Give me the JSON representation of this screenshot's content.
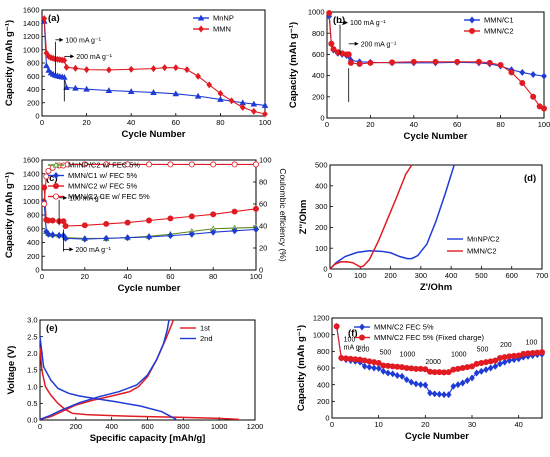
{
  "chart_data": [
    {
      "id": "a",
      "type": "line",
      "panel_label": "(a)",
      "xlabel": "Cycle Number",
      "ylabel": "Capacity (mAh g⁻¹)",
      "xlim": [
        0,
        100
      ],
      "ylim": [
        0,
        1600
      ],
      "xticks": [
        0,
        20,
        40,
        60,
        80,
        100
      ],
      "yticks": [
        0,
        200,
        400,
        600,
        800,
        1000,
        1200,
        1400,
        1600
      ],
      "legend": "top-right",
      "annotations": [
        "100 mA g⁻¹",
        "200 mA g⁻¹"
      ],
      "series": [
        {
          "name": "MnNP",
          "color": "#1f3bd6",
          "marker": "triangle",
          "x": [
            1,
            2,
            3,
            4,
            5,
            6,
            7,
            8,
            9,
            10,
            11,
            15,
            20,
            30,
            40,
            50,
            60,
            70,
            80,
            90,
            95,
            100
          ],
          "y": [
            1430,
            760,
            690,
            650,
            630,
            615,
            605,
            595,
            590,
            585,
            430,
            420,
            405,
            385,
            370,
            355,
            335,
            300,
            250,
            200,
            180,
            160
          ]
        },
        {
          "name": "MMN",
          "color": "#e11b22",
          "marker": "diamond",
          "x": [
            1,
            2,
            3,
            4,
            5,
            6,
            7,
            8,
            9,
            10,
            11,
            15,
            20,
            30,
            40,
            50,
            55,
            60,
            65,
            70,
            75,
            80,
            85,
            90,
            95,
            100
          ],
          "y": [
            1470,
            950,
            900,
            880,
            870,
            860,
            855,
            850,
            845,
            840,
            735,
            720,
            700,
            695,
            705,
            715,
            730,
            730,
            700,
            600,
            470,
            340,
            230,
            130,
            70,
            30
          ]
        }
      ]
    },
    {
      "id": "b",
      "type": "line",
      "panel_label": "(b)",
      "xlabel": "Cycle Number",
      "ylabel": "Capacity (mAh g⁻¹)",
      "xlim": [
        0,
        100
      ],
      "ylim": [
        0,
        1000
      ],
      "xticks": [
        0,
        20,
        40,
        60,
        80,
        100
      ],
      "yticks": [
        0,
        200,
        400,
        600,
        800,
        1000
      ],
      "legend": "top-right",
      "annotations": [
        "100 mA g⁻¹",
        "200 mA g⁻¹"
      ],
      "series": [
        {
          "name": "MMN/C1",
          "color": "#1f3bd6",
          "marker": "diamond",
          "x": [
            1,
            2,
            3,
            5,
            7,
            9,
            10,
            11,
            15,
            20,
            30,
            40,
            50,
            60,
            70,
            75,
            80,
            85,
            90,
            95,
            100
          ],
          "y": [
            960,
            700,
            640,
            610,
            600,
            590,
            585,
            545,
            530,
            525,
            520,
            520,
            520,
            525,
            520,
            510,
            490,
            455,
            430,
            410,
            395
          ]
        },
        {
          "name": "MMN/C2",
          "color": "#e11b22",
          "marker": "circle",
          "x": [
            1,
            2,
            3,
            5,
            7,
            9,
            10,
            11,
            15,
            20,
            30,
            40,
            50,
            60,
            70,
            75,
            80,
            85,
            90,
            95,
            98,
            100
          ],
          "y": [
            990,
            700,
            650,
            620,
            610,
            600,
            600,
            520,
            510,
            520,
            525,
            530,
            530,
            530,
            530,
            520,
            500,
            430,
            330,
            200,
            110,
            90
          ]
        }
      ]
    },
    {
      "id": "c",
      "type": "line",
      "panel_label": "(c)",
      "xlabel": "Cycle number",
      "ylabel": "Capacity (mAh g⁻¹)",
      "ylabel2": "Coulombic efficiency (%)",
      "xlim": [
        0,
        100
      ],
      "ylim": [
        0,
        1600
      ],
      "ylim2": [
        0,
        100
      ],
      "xticks": [
        0,
        20,
        40,
        60,
        80,
        100
      ],
      "yticks": [
        0,
        200,
        400,
        600,
        800,
        1000,
        1200,
        1400,
        1600
      ],
      "yticks2": [
        0,
        20,
        40,
        60,
        80,
        100
      ],
      "legend": "top-left",
      "annotations": [
        "100 mA g⁻¹",
        "200 mA g⁻¹"
      ],
      "series": [
        {
          "name": "MnNP/C2 w/ FEC 5%",
          "color": "#5a8a1a",
          "marker": "triangle-open",
          "x": [
            1,
            2,
            3,
            5,
            8,
            10,
            11,
            20,
            30,
            40,
            50,
            60,
            70,
            80,
            90,
            100
          ],
          "y": [
            1000,
            560,
            530,
            520,
            510,
            510,
            470,
            460,
            460,
            470,
            490,
            520,
            560,
            600,
            610,
            620
          ]
        },
        {
          "name": "MMN/C1 w/ FEC 5%",
          "color": "#1f3bd6",
          "marker": "diamond",
          "x": [
            1,
            2,
            3,
            5,
            8,
            10,
            11,
            20,
            30,
            40,
            50,
            60,
            70,
            80,
            90,
            100
          ],
          "y": [
            1000,
            560,
            520,
            510,
            500,
            500,
            460,
            450,
            460,
            470,
            480,
            500,
            520,
            550,
            570,
            590
          ]
        },
        {
          "name": "MMN/C2 w/ FEC 5%",
          "color": "#e11b22",
          "marker": "circle",
          "x": [
            1,
            2,
            3,
            5,
            8,
            10,
            11,
            20,
            30,
            40,
            50,
            60,
            70,
            80,
            90,
            100
          ],
          "y": [
            1200,
            730,
            720,
            720,
            710,
            710,
            640,
            650,
            670,
            690,
            720,
            750,
            780,
            810,
            850,
            890
          ]
        },
        {
          "name": "MMN/C2 CE w/ FEC 5%",
          "color": "#e11b22",
          "marker": "circle-open",
          "axis": "right",
          "x": [
            1,
            2,
            3,
            5,
            8,
            10,
            12,
            20,
            30,
            40,
            50,
            60,
            70,
            80,
            90,
            100
          ],
          "y": [
            60,
            85,
            90,
            93,
            95,
            95,
            96,
            96,
            96,
            96,
            96,
            96,
            96,
            96,
            96,
            96
          ]
        }
      ]
    },
    {
      "id": "d",
      "type": "line",
      "panel_label": "(d)",
      "xlabel": "Z'/Ohm",
      "ylabel": "Z''/Ohm",
      "xlim": [
        0,
        700
      ],
      "ylim": [
        0,
        500
      ],
      "xticks": [
        0,
        100,
        200,
        300,
        400,
        500,
        600,
        700
      ],
      "yticks": [
        0,
        100,
        200,
        300,
        400,
        500
      ],
      "legend": "right",
      "series": [
        {
          "name": "MnNP/C2",
          "color": "#1f3bd6",
          "x": [
            0,
            20,
            50,
            90,
            130,
            170,
            200,
            230,
            255,
            270,
            290,
            320,
            350,
            380,
            410
          ],
          "y": [
            0,
            30,
            60,
            80,
            88,
            85,
            78,
            60,
            50,
            50,
            65,
            120,
            230,
            360,
            500
          ]
        },
        {
          "name": "MMN/C2",
          "color": "#e11b22",
          "x": [
            0,
            15,
            35,
            55,
            75,
            90,
            100,
            110,
            130,
            160,
            190,
            220,
            250,
            270
          ],
          "y": [
            0,
            22,
            34,
            35,
            30,
            18,
            10,
            14,
            45,
            135,
            240,
            345,
            455,
            500
          ]
        }
      ]
    },
    {
      "id": "e",
      "type": "line",
      "panel_label": "(e)",
      "xlabel": "Specific capacity [mAh/g]",
      "ylabel": "Voltage (V)",
      "xlim": [
        0,
        1200
      ],
      "ylim": [
        0,
        3.0
      ],
      "xticks": [
        0,
        200,
        400,
        600,
        800,
        1000,
        1200
      ],
      "yticks": [
        0,
        0.5,
        1.0,
        1.5,
        2.0,
        2.5,
        3.0
      ],
      "legend": "top-right",
      "series": [
        {
          "name": "1st",
          "color": "#e11b22",
          "branches": [
            {
              "x": [
                0,
                10,
                30,
                60,
                100,
                140,
                180,
                260,
                400,
                600,
                800,
                1000,
                1110
              ],
              "y": [
                2.2,
                1.5,
                1.0,
                0.75,
                0.5,
                0.32,
                0.2,
                0.16,
                0.13,
                0.1,
                0.08,
                0.05,
                0.02
              ]
            },
            {
              "x": [
                0,
                60,
                120,
                200,
                300,
                400,
                500,
                550,
                600,
                650,
                700,
                730,
                745
              ],
              "y": [
                0.02,
                0.1,
                0.25,
                0.45,
                0.6,
                0.72,
                0.85,
                1.0,
                1.3,
                1.8,
                2.4,
                2.8,
                3.0
              ]
            }
          ]
        },
        {
          "name": "2nd",
          "color": "#1f3bd6",
          "branches": [
            {
              "x": [
                0,
                20,
                60,
                100,
                160,
                220,
                300,
                420,
                560,
                680,
                760
              ],
              "y": [
                2.5,
                1.6,
                1.2,
                0.95,
                0.8,
                0.72,
                0.65,
                0.55,
                0.42,
                0.25,
                0.02
              ]
            },
            {
              "x": [
                0,
                50,
                120,
                220,
                330,
                440,
                540,
                600,
                650,
                690,
                710,
                720
              ],
              "y": [
                0.02,
                0.12,
                0.3,
                0.52,
                0.7,
                0.85,
                1.05,
                1.35,
                1.8,
                2.3,
                2.7,
                3.0
              ]
            }
          ]
        }
      ]
    },
    {
      "id": "f",
      "type": "line",
      "panel_label": "(f)",
      "xlabel": "Cycle Number",
      "ylabel": "Capacity (mAh g⁻¹)",
      "xlim": [
        0,
        45
      ],
      "ylim": [
        0,
        1200
      ],
      "xticks": [
        0,
        10,
        20,
        30,
        40
      ],
      "yticks": [
        0,
        200,
        400,
        600,
        800,
        1000,
        1200
      ],
      "legend": "top-left",
      "rate_labels": [
        "100 mA g⁻¹",
        "200",
        "500",
        "1000",
        "2000",
        "1000",
        "500",
        "200",
        "100"
      ],
      "series": [
        {
          "name": "MMN/C2 FEC 5%",
          "color": "#1f3bd6",
          "marker": "diamond",
          "x": [
            1,
            2,
            3,
            4,
            5,
            6,
            7,
            8,
            9,
            10,
            11,
            12,
            13,
            14,
            15,
            16,
            17,
            18,
            19,
            20,
            21,
            22,
            23,
            24,
            25,
            26,
            27,
            28,
            29,
            30,
            31,
            32,
            33,
            34,
            35,
            36,
            37,
            38,
            39,
            40,
            41,
            42,
            43,
            44,
            45
          ],
          "y": [
            1100,
            720,
            700,
            690,
            680,
            670,
            620,
            610,
            600,
            595,
            560,
            540,
            530,
            510,
            500,
            460,
            430,
            410,
            400,
            395,
            300,
            290,
            285,
            280,
            280,
            380,
            400,
            420,
            450,
            480,
            540,
            560,
            580,
            600,
            620,
            650,
            670,
            690,
            700,
            710,
            730,
            740,
            750,
            760,
            765
          ]
        },
        {
          "name": "MMN/C2 FEC 5% (Fixed charge)",
          "color": "#e11b22",
          "marker": "circle",
          "x": [
            1,
            2,
            3,
            4,
            5,
            6,
            7,
            8,
            9,
            10,
            11,
            12,
            13,
            14,
            15,
            16,
            17,
            18,
            19,
            20,
            21,
            22,
            23,
            24,
            25,
            26,
            27,
            28,
            29,
            30,
            31,
            32,
            33,
            34,
            35,
            36,
            37,
            38,
            39,
            40,
            41,
            42,
            43,
            44,
            45
          ],
          "y": [
            1100,
            720,
            715,
            710,
            705,
            700,
            690,
            680,
            670,
            660,
            630,
            625,
            620,
            615,
            610,
            600,
            595,
            590,
            590,
            585,
            555,
            550,
            550,
            548,
            550,
            580,
            590,
            600,
            610,
            620,
            650,
            660,
            670,
            680,
            690,
            720,
            730,
            740,
            745,
            750,
            770,
            775,
            780,
            785,
            790
          ]
        }
      ]
    }
  ]
}
